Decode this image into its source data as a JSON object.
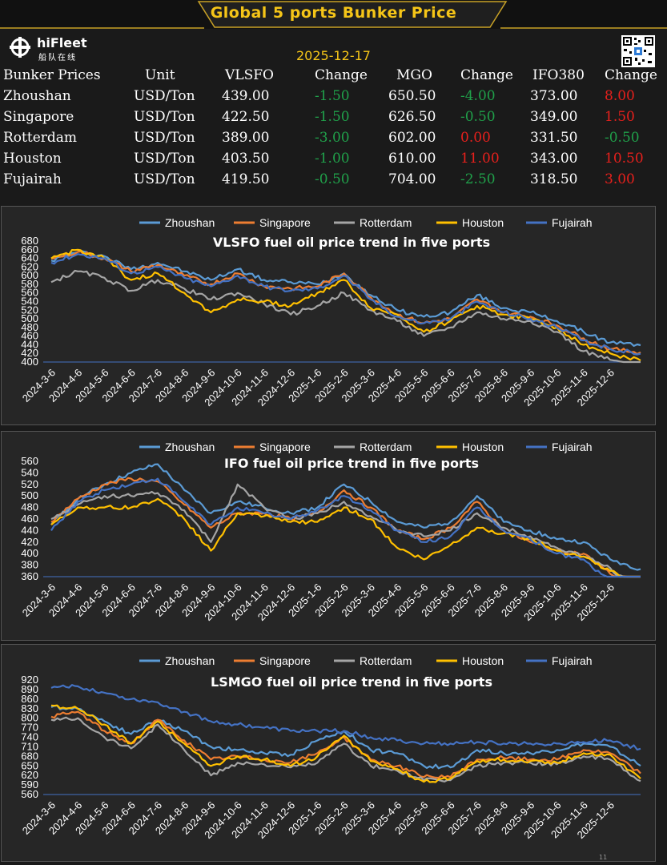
{
  "banner": {
    "title": "Global 5 ports  Bunker Price"
  },
  "brand": {
    "name": "hiFleet",
    "subtitle": "船队在线"
  },
  "date": "2025-12-17",
  "price_table": {
    "headers": [
      "Bunker Prices",
      "Unit",
      "VLSFO",
      "Change",
      "MGO",
      "Change",
      "IFO380",
      "Change"
    ],
    "rows": [
      {
        "port": "Zhoushan",
        "unit": "USD/Ton",
        "vlsfo": "439.00",
        "vlsfo_change": "-1.50",
        "mgo": "650.50",
        "mgo_change": "-4.00",
        "ifo": "373.00",
        "ifo_change": "8.00"
      },
      {
        "port": "Singapore",
        "unit": "USD/Ton",
        "vlsfo": "422.50",
        "vlsfo_change": "-1.50",
        "mgo": "626.50",
        "mgo_change": "-0.50",
        "ifo": "349.00",
        "ifo_change": "1.50"
      },
      {
        "port": "Rotterdam",
        "unit": "USD/Ton",
        "vlsfo": "389.00",
        "vlsfo_change": "-3.00",
        "mgo": "602.00",
        "mgo_change": "0.00",
        "ifo": "331.50",
        "ifo_change": "-0.50"
      },
      {
        "port": "Houston",
        "unit": "USD/Ton",
        "vlsfo": "403.50",
        "vlsfo_change": "-1.00",
        "mgo": "610.00",
        "mgo_change": "11.00",
        "ifo": "343.00",
        "ifo_change": "10.50"
      },
      {
        "port": "Fujairah",
        "unit": "USD/Ton",
        "vlsfo": "419.50",
        "vlsfo_change": "-0.50",
        "mgo": "704.00",
        "mgo_change": "-2.50",
        "ifo": "318.50",
        "ifo_change": "3.00"
      }
    ]
  },
  "colors": {
    "positive_change": "#e8201c",
    "negative_change": "#20a04a",
    "gold": "#f5c518",
    "series": {
      "Zhoushan": "#5b9bd5",
      "Singapore": "#ed7d31",
      "Rotterdam": "#a5a5a5",
      "Houston": "#ffc000",
      "Fujairah": "#4472c4"
    }
  },
  "footnote": "11",
  "chart_data": [
    {
      "type": "line",
      "title": "VLSFO fuel oil price trend in five ports",
      "legend": "top",
      "x": [
        "2024-3-6",
        "2024-4-6",
        "2024-5-6",
        "2024-6-6",
        "2024-7-6",
        "2024-8-6",
        "2024-9-6",
        "2024-10-6",
        "2024-11-6",
        "2024-12-6",
        "2025-1-6",
        "2025-2-6",
        "2025-3-6",
        "2025-4-6",
        "2025-5-6",
        "2025-6-6",
        "2025-7-6",
        "2025-8-6",
        "2025-9-6",
        "2025-10-6",
        "2025-11-6",
        "2025-12-6",
        "2025-12-17"
      ],
      "ylim": [
        400,
        680
      ],
      "yticks": [
        400,
        420,
        440,
        460,
        480,
        500,
        520,
        540,
        560,
        580,
        600,
        620,
        640,
        660,
        680
      ],
      "series": [
        {
          "name": "Zhoushan",
          "values": [
            635,
            655,
            645,
            615,
            630,
            610,
            590,
            615,
            590,
            585,
            580,
            605,
            555,
            520,
            505,
            515,
            555,
            525,
            515,
            495,
            470,
            445,
            439
          ]
        },
        {
          "name": "Singapore",
          "values": [
            640,
            655,
            640,
            610,
            625,
            600,
            580,
            605,
            575,
            570,
            575,
            605,
            550,
            510,
            490,
            500,
            545,
            515,
            505,
            485,
            455,
            430,
            422.5
          ]
        },
        {
          "name": "Rotterdam",
          "values": [
            585,
            610,
            595,
            565,
            590,
            570,
            545,
            560,
            535,
            510,
            530,
            560,
            520,
            495,
            460,
            480,
            515,
            500,
            495,
            470,
            425,
            405,
            389
          ]
        },
        {
          "name": "Houston",
          "values": [
            640,
            660,
            640,
            590,
            605,
            560,
            515,
            545,
            540,
            530,
            560,
            590,
            525,
            510,
            470,
            495,
            530,
            510,
            500,
            480,
            440,
            420,
            403.5
          ]
        },
        {
          "name": "Fujairah",
          "values": [
            630,
            650,
            640,
            605,
            620,
            595,
            575,
            600,
            575,
            565,
            570,
            600,
            545,
            505,
            490,
            500,
            540,
            515,
            500,
            480,
            450,
            430,
            419.5
          ]
        }
      ]
    },
    {
      "type": "line",
      "title": "IFO fuel oil price trend in five ports",
      "legend": "top",
      "x": [
        "2024-3-6",
        "2024-4-6",
        "2024-5-6",
        "2024-6-6",
        "2024-7-6",
        "2024-8-6",
        "2024-9-6",
        "2024-10-6",
        "2024-11-6",
        "2024-12-6",
        "2025-1-6",
        "2025-2-6",
        "2025-3-6",
        "2025-4-6",
        "2025-5-6",
        "2025-6-6",
        "2025-7-6",
        "2025-8-6",
        "2025-9-6",
        "2025-10-6",
        "2025-11-6",
        "2025-12-6",
        "2025-12-17"
      ],
      "ylim": [
        360,
        560
      ],
      "yticks": [
        360,
        380,
        400,
        420,
        440,
        460,
        480,
        500,
        520,
        540,
        560
      ],
      "series": [
        {
          "name": "Zhoushan",
          "values": [
            450,
            495,
            520,
            540,
            555,
            510,
            470,
            490,
            480,
            470,
            480,
            520,
            490,
            455,
            445,
            455,
            500,
            455,
            440,
            425,
            420,
            390,
            373
          ]
        },
        {
          "name": "Singapore",
          "values": [
            455,
            495,
            520,
            530,
            525,
            485,
            445,
            470,
            470,
            460,
            470,
            510,
            480,
            440,
            425,
            445,
            490,
            440,
            420,
            405,
            400,
            365,
            349
          ]
        },
        {
          "name": "Rotterdam",
          "values": [
            460,
            485,
            500,
            500,
            505,
            475,
            420,
            520,
            480,
            460,
            470,
            490,
            465,
            440,
            430,
            440,
            470,
            445,
            430,
            410,
            395,
            375,
            331.5
          ]
        },
        {
          "name": "Houston",
          "values": [
            450,
            480,
            480,
            480,
            495,
            460,
            405,
            470,
            465,
            455,
            455,
            480,
            460,
            410,
            390,
            415,
            445,
            435,
            425,
            405,
            395,
            370,
            343
          ]
        },
        {
          "name": "Fujairah",
          "values": [
            440,
            490,
            510,
            520,
            530,
            490,
            450,
            480,
            470,
            460,
            475,
            500,
            475,
            440,
            420,
            430,
            480,
            440,
            425,
            400,
            390,
            350,
            318.5
          ]
        }
      ]
    },
    {
      "type": "line",
      "title": "LSMGO fuel oil price trend in five ports",
      "legend": "top",
      "x": [
        "2024-3-6",
        "2024-4-6",
        "2024-5-6",
        "2024-6-6",
        "2024-7-6",
        "2024-8-6",
        "2024-9-6",
        "2024-10-6",
        "2024-11-6",
        "2024-12-6",
        "2025-1-6",
        "2025-2-6",
        "2025-3-6",
        "2025-4-6",
        "2025-5-6",
        "2025-6-6",
        "2025-7-6",
        "2025-8-6",
        "2025-9-6",
        "2025-10-6",
        "2025-11-6",
        "2025-12-6",
        "2025-12-17"
      ],
      "ylim": [
        560,
        920
      ],
      "yticks": [
        560,
        590,
        620,
        650,
        680,
        710,
        740,
        770,
        800,
        830,
        860,
        890,
        920
      ],
      "series": [
        {
          "name": "Zhoushan",
          "values": [
            835,
            830,
            790,
            750,
            795,
            760,
            710,
            700,
            690,
            685,
            730,
            760,
            700,
            690,
            650,
            645,
            700,
            690,
            690,
            700,
            720,
            710,
            650.5
          ]
        },
        {
          "name": "Singapore",
          "values": [
            805,
            820,
            760,
            720,
            795,
            730,
            670,
            680,
            670,
            660,
            690,
            740,
            670,
            650,
            615,
            615,
            670,
            675,
            670,
            670,
            700,
            690,
            626.5
          ]
        },
        {
          "name": "Rotterdam",
          "values": [
            795,
            800,
            740,
            705,
            780,
            700,
            620,
            660,
            655,
            645,
            660,
            720,
            650,
            635,
            605,
            605,
            650,
            660,
            660,
            655,
            680,
            670,
            602
          ]
        },
        {
          "name": "Houston",
          "values": [
            840,
            830,
            780,
            720,
            790,
            720,
            650,
            680,
            670,
            650,
            680,
            745,
            665,
            640,
            600,
            610,
            665,
            670,
            665,
            660,
            690,
            685,
            610
          ]
        },
        {
          "name": "Fujairah",
          "values": [
            895,
            900,
            880,
            860,
            850,
            820,
            790,
            780,
            770,
            760,
            760,
            760,
            740,
            730,
            720,
            720,
            725,
            720,
            720,
            720,
            725,
            730,
            704
          ]
        }
      ]
    }
  ]
}
